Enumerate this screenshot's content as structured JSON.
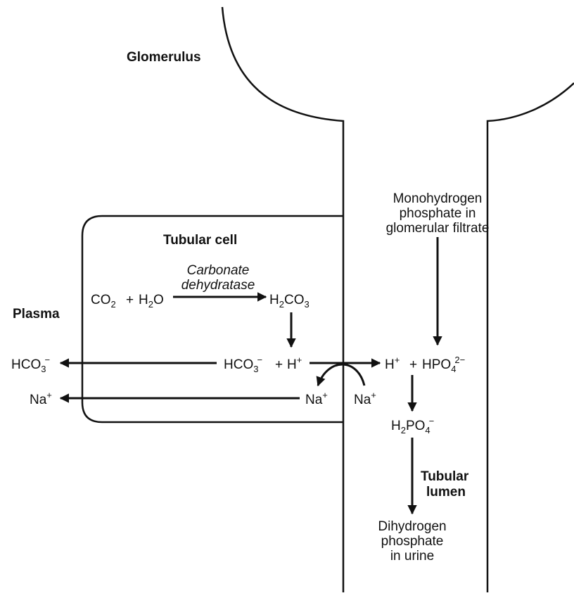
{
  "labels": {
    "glomerulus": "Glomerulus",
    "tubular_cell": "Tubular cell",
    "plasma": "Plasma",
    "tubular_lumen_line1": "Tubular",
    "tubular_lumen_line2": "lumen",
    "enzyme_line1": "Carbonate",
    "enzyme_line2": "dehydratase",
    "filtrate_line1": "Monohydrogen",
    "filtrate_line2": "phosphate in",
    "filtrate_line3": "glomerular filtrate",
    "urine_line1": "Dihydrogen",
    "urine_line2": "phosphate",
    "urine_line3": "in urine"
  },
  "chemistry": {
    "co2": {
      "base": "CO",
      "sub": "2"
    },
    "plus": "+",
    "h2o": {
      "base": "H",
      "sub": "2",
      "tail": "O"
    },
    "h2co3": {
      "base": "H",
      "sub": "2",
      "tail": "CO",
      "sub2": "3"
    },
    "hco3_cell": {
      "base": "HCO",
      "sub": "3",
      "sup": "−"
    },
    "h_cell": {
      "base": "H",
      "sup": "+"
    },
    "hco3_plasma": {
      "base": "HCO",
      "sub": "3",
      "sup": "−"
    },
    "na_cell": {
      "base": "Na",
      "sup": "+"
    },
    "na_plasma": {
      "base": "Na",
      "sup": "+"
    },
    "na_lumen": {
      "base": "Na",
      "sup": "+"
    },
    "h_lumen": {
      "base": "H",
      "sup": "+"
    },
    "hpo4": {
      "base": "HPO",
      "sub": "4",
      "sup": "2−"
    },
    "h2po4": {
      "base": "H",
      "sub": "2",
      "tail": "PO",
      "sub2": "4",
      "sup": "−"
    }
  }
}
